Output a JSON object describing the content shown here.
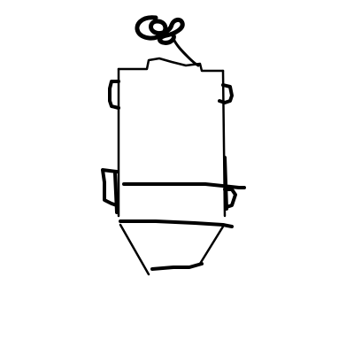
{
  "drawing": {
    "stroke_color": "#000000",
    "background_color": "#ffffff"
  },
  "parts": {
    "top_scribble": "spiral-scribble",
    "body": "rectangular-body",
    "side_handles": "side-handles",
    "band_lines": "horizontal-bands",
    "bottom_hopper": "tapered-bottom"
  }
}
